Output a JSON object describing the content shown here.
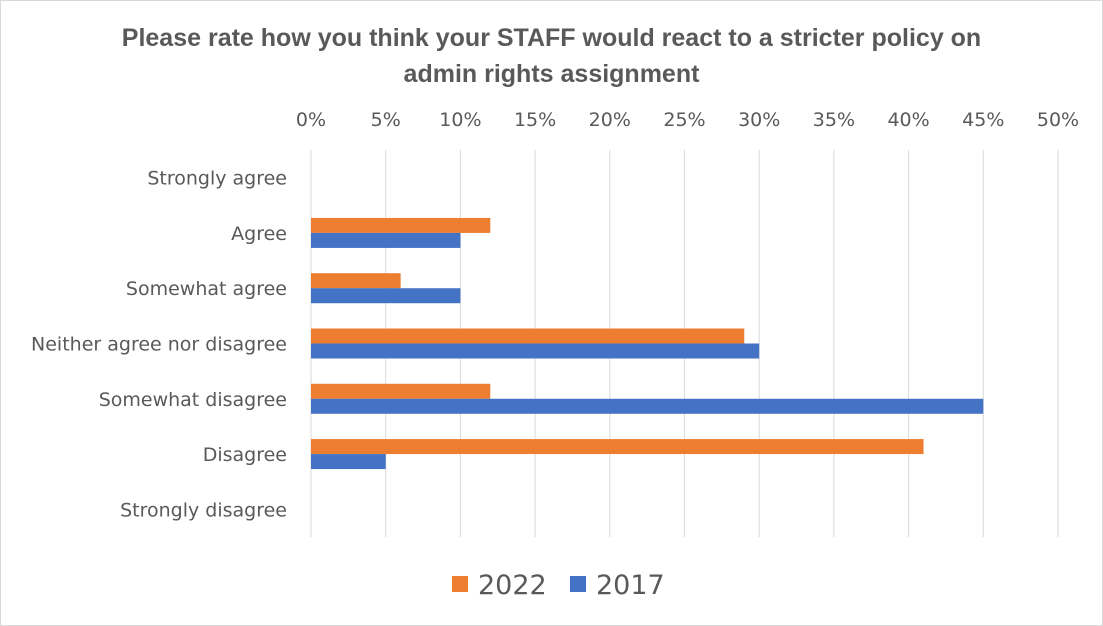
{
  "chart_data": {
    "type": "bar",
    "orientation": "horizontal",
    "title_line1": "Please rate how you think your STAFF would react to a stricter policy on",
    "title_line2": "admin rights assignment",
    "categories": [
      "Strongly agree",
      "Agree",
      "Somewhat agree",
      "Neither agree nor disagree",
      "Somewhat disagree",
      "Disagree",
      "Strongly disagree"
    ],
    "series": [
      {
        "name": "2022",
        "color": "#ed7d31",
        "values": [
          0,
          12,
          6,
          29,
          12,
          41,
          0
        ]
      },
      {
        "name": "2017",
        "color": "#4472c4",
        "values": [
          0,
          10,
          10,
          30,
          45,
          5,
          0
        ]
      }
    ],
    "xlim": [
      0,
      50
    ],
    "ticks": [
      "0%",
      "5%",
      "10%",
      "15%",
      "20%",
      "25%",
      "30%",
      "35%",
      "40%",
      "45%",
      "50%"
    ],
    "tick_values": [
      0,
      5,
      10,
      15,
      20,
      25,
      30,
      35,
      40,
      45,
      50
    ],
    "axis_position": "top",
    "grid": true,
    "legend": "bottom"
  }
}
